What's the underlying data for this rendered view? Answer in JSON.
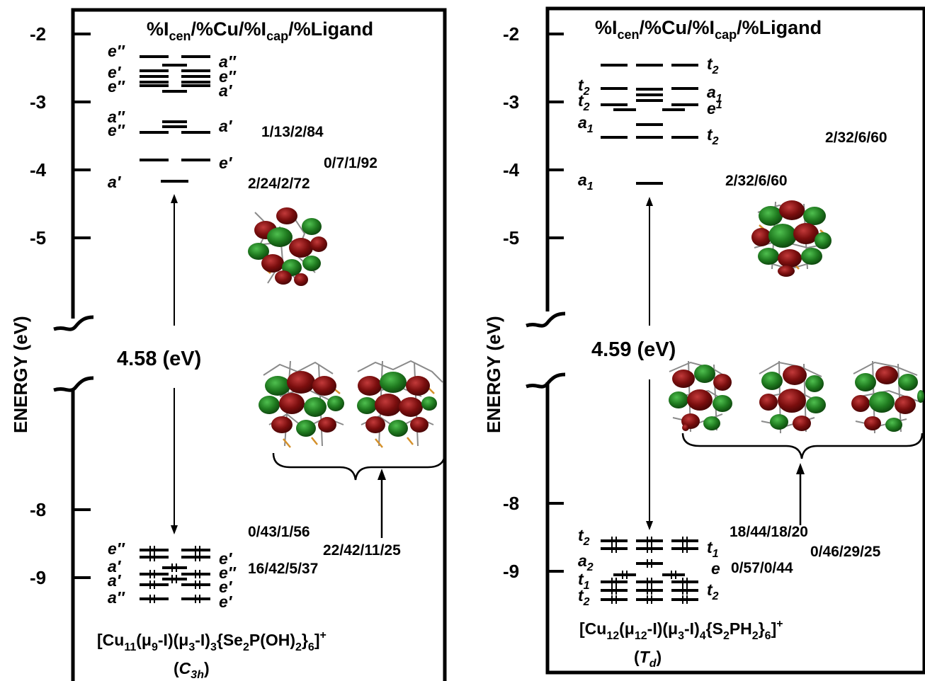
{
  "left": {
    "y_axis_label": "ENERGY (eV)",
    "y_ticks": [
      "-2",
      "-3",
      "-4",
      "-5",
      "-8",
      "-9"
    ],
    "header": {
      "p1": "%I",
      "sub1": "cen",
      "p2": "/%Cu/%I",
      "sub2": "cap",
      "p3": "/%Ligand"
    },
    "unocc_left_labels": [
      "e″",
      "e′",
      "e″",
      "a″",
      "e″",
      "a′"
    ],
    "unocc_right_labels": [
      "a″",
      "e″",
      "a′",
      "a′",
      "e′"
    ],
    "unocc_percents": [
      "1/13/2/84",
      "0/7/1/92",
      "2/24/2/72"
    ],
    "gap_label": "4.58 (eV)",
    "occ_percents": [
      "0/43/1/56",
      "22/42/11/25",
      "16/42/5/37"
    ],
    "occ_left_labels": [
      "e″",
      "a′",
      "a′",
      "a″"
    ],
    "occ_right_labels": [
      "e′",
      "e″",
      "e′",
      "e′"
    ],
    "formula": {
      "a": "[Cu",
      "b": "11",
      "c": "(μ",
      "d": "9",
      "e": "-I)(μ",
      "f": "3",
      "g": "-I)",
      "h": "3",
      "i": "{Se",
      "j": "2",
      "k": "P(OH)",
      "l": "2",
      "m": "}",
      "n": "6",
      "o": "]",
      "p": "+"
    },
    "symmetry": {
      "open": "(",
      "sym": "C",
      "sub": "3h",
      "close": ")"
    }
  },
  "right": {
    "y_axis_label": "ENERGY (eV)",
    "y_ticks": [
      "-2",
      "-3",
      "-4",
      "-5",
      "-8",
      "-9"
    ],
    "header": {
      "p1": "%I",
      "sub1": "cen",
      "p2": "/%Cu/%I",
      "sub2": "cap",
      "p3": "/%Ligand"
    },
    "unocc_left_labels": [
      {
        "t": "t",
        "s": "2"
      },
      {
        "t": "t",
        "s": "2"
      },
      {
        "t": "a",
        "s": "1"
      },
      {
        "t": "a",
        "s": "1"
      }
    ],
    "unocc_right_labels": [
      {
        "t": "t",
        "s": "2"
      },
      {
        "t": "a",
        "s": "1"
      },
      {
        "t": "e",
        "s": "1"
      },
      {
        "t": "t",
        "s": "2"
      }
    ],
    "unocc_percents": [
      "2/32/6/60",
      "2/32/6/60"
    ],
    "gap_label": "4.59 (eV)",
    "occ_percents": [
      "18/44/18/20",
      "0/46/29/25",
      "0/57/0/44"
    ],
    "occ_left_labels": [
      {
        "t": "t",
        "s": "2"
      },
      {
        "t": "a",
        "s": "2"
      },
      {
        "t": "t",
        "s": "1"
      },
      {
        "t": "t",
        "s": "2"
      }
    ],
    "occ_right_labels": [
      {
        "t": "t",
        "s": "1"
      },
      {
        "t": "e",
        "s": ""
      },
      {
        "t": "t",
        "s": "2"
      }
    ],
    "formula": {
      "a": "[Cu",
      "b": "12",
      "c": "(μ",
      "d": "12",
      "e": "-I)(μ",
      "f": "3",
      "g": "-I)",
      "h": "4",
      "i": "{S",
      "j": "2",
      "k": "PH",
      "l": "2",
      "m": "}",
      "n": "6",
      "o": "]",
      "p": "+"
    },
    "symmetry": {
      "open": "(",
      "sym": "T",
      "sub": "d",
      "close": ")"
    }
  },
  "colors": {
    "line": "#000000",
    "orbital_red": "#7a0e0e",
    "orbital_green": "#1f7a1f",
    "atom_grey": "#8a8a8a",
    "atom_orange": "#d4902a"
  }
}
